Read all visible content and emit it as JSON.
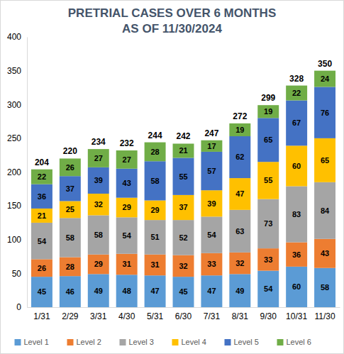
{
  "chart_data": {
    "type": "bar",
    "title": "PRETRIAL CASES OVER 6 MONTHS",
    "subtitle": "AS OF 11/30/2024",
    "categories": [
      "1/31",
      "2/29",
      "3/31",
      "4/30",
      "5/31",
      "6/30",
      "7/31",
      "8/31",
      "9/30",
      "10/31",
      "11/30"
    ],
    "series": [
      {
        "name": "Level 1",
        "color": "#5b9bd5",
        "values": [
          45,
          46,
          49,
          48,
          47,
          45,
          47,
          49,
          54,
          60,
          58
        ]
      },
      {
        "name": "Level 2",
        "color": "#ed7d31",
        "values": [
          26,
          28,
          29,
          31,
          31,
          32,
          33,
          32,
          33,
          36,
          43
        ]
      },
      {
        "name": "Level 3",
        "color": "#a5a5a5",
        "values": [
          54,
          58,
          58,
          54,
          51,
          52,
          54,
          63,
          73,
          83,
          84
        ]
      },
      {
        "name": "Level 4",
        "color": "#ffc000",
        "values": [
          21,
          25,
          32,
          29,
          29,
          37,
          39,
          47,
          55,
          60,
          65
        ]
      },
      {
        "name": "Level 5",
        "color": "#4472c4",
        "values": [
          36,
          37,
          39,
          43,
          58,
          55,
          57,
          62,
          65,
          67,
          76
        ]
      },
      {
        "name": "Level 6",
        "color": "#70ad47",
        "values": [
          22,
          26,
          27,
          27,
          28,
          21,
          17,
          19,
          19,
          22,
          24
        ]
      }
    ],
    "totals": [
      204,
      220,
      234,
      232,
      244,
      242,
      247,
      272,
      299,
      328,
      350
    ],
    "ylim": [
      0,
      400
    ],
    "yticks": [
      0,
      50,
      100,
      150,
      200,
      250,
      300,
      350,
      400
    ],
    "stacked": true,
    "data_labels": true,
    "grid": false,
    "legend": "bottom"
  }
}
